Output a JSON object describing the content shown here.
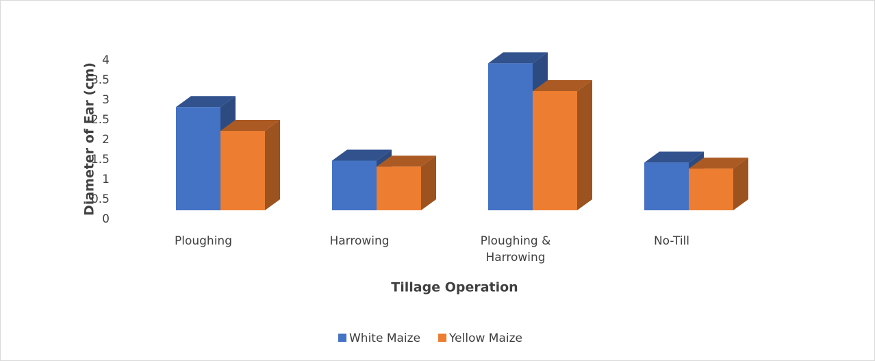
{
  "chart_data": {
    "type": "bar3d",
    "x_label": "Tillage Operation",
    "y_label": "Diameter of Ear (cm)",
    "categories": [
      "Ploughing",
      "Harrowing",
      "Ploughing & Harrowing",
      "No-Till"
    ],
    "series": [
      {
        "name": "White Maize",
        "color": "#4472c4",
        "values": [
          2.6,
          1.25,
          3.7,
          1.2
        ]
      },
      {
        "name": "Yellow Maize",
        "color": "#ed7d31",
        "values": [
          2.0,
          1.1,
          3.0,
          1.05
        ]
      }
    ],
    "ylim": [
      0,
      4
    ],
    "yticks": [
      0,
      0.5,
      1,
      1.5,
      2,
      2.5,
      3,
      3.5,
      4
    ],
    "legend": "bottom"
  }
}
